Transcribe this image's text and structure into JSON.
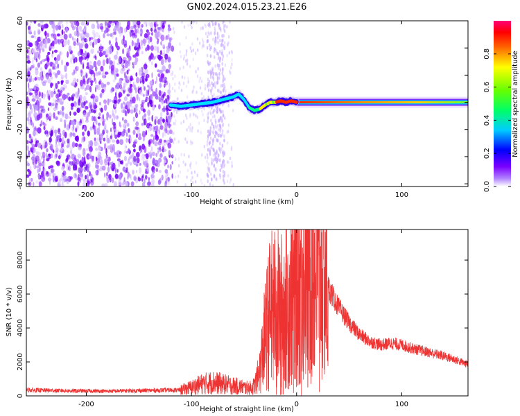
{
  "figure_title": "GN02.2024.015.23.21.E26",
  "chart_data": [
    {
      "type": "heatmap",
      "title": "",
      "xlabel": "Height of straight line (km)",
      "ylabel": "Frequency (Hz)",
      "xlim": [
        -257,
        163
      ],
      "ylim": [
        -62,
        60
      ],
      "x_ticks": [
        -200,
        -100,
        0,
        100
      ],
      "x_tick_labels": [
        "-200",
        "-100",
        "0",
        "100"
      ],
      "y_ticks": [
        -60,
        -40,
        -20,
        0,
        20,
        40,
        60
      ],
      "y_tick_labels": [
        "-60",
        "-40",
        "-20",
        "0",
        "20",
        "40",
        "60"
      ],
      "grid": false,
      "description_regions": {
        "noise_region_x": [
          -257,
          -118
        ],
        "faint_band_x": [
          -85,
          -68
        ],
        "signal_track": {
          "x": [
            -120,
            -110,
            -100,
            -90,
            -80,
            -70,
            -60,
            -55,
            -50,
            -45,
            -40,
            -35,
            -30,
            -25,
            -20,
            -15,
            -10,
            -5,
            0,
            20,
            60,
            100,
            163
          ],
          "y": [
            -2,
            -3,
            -2,
            -1,
            0,
            2,
            4,
            6,
            2,
            -4,
            -6,
            -5,
            -2,
            0,
            0,
            1,
            0,
            1,
            0,
            0,
            0,
            0,
            0
          ]
        },
        "steady_line_x": [
          0,
          163
        ],
        "steady_line_freq": 0
      },
      "colorbar": {
        "label": "Normalized spectral amplitude",
        "range": [
          0,
          1
        ],
        "ticks": [
          0.0,
          0.2,
          0.4,
          0.6,
          0.8
        ],
        "tick_labels": [
          "0.0",
          "0.2",
          "0.4",
          "0.6",
          "0.8"
        ],
        "colormap": [
          "#ffffff",
          "#7a00ff",
          "#0000ff",
          "#00ccff",
          "#00ff66",
          "#66ff00",
          "#ffff00",
          "#ff6600",
          "#ff0000",
          "#ff0077"
        ]
      }
    },
    {
      "type": "line",
      "title": "",
      "xlabel": "Height of straight line (km)",
      "ylabel": "SNR (10 * v/v)",
      "xlim": [
        -257,
        163
      ],
      "ylim": [
        0,
        9800
      ],
      "x_ticks": [
        -200,
        -100,
        0,
        100
      ],
      "x_tick_labels": [
        "-200",
        "-100",
        "0",
        "100"
      ],
      "y_ticks": [
        0,
        2000,
        4000,
        6000,
        8000
      ],
      "y_tick_labels": [
        "0",
        "2000",
        "4000",
        "6000",
        "8000"
      ],
      "grid": false,
      "series": [
        {
          "color": "#ee3333",
          "x": [
            -257,
            -220,
            -180,
            -140,
            -110,
            -100,
            -90,
            -80,
            -70,
            -60,
            -50,
            -45,
            -40,
            -35,
            -30,
            -25,
            -20,
            -15,
            -10,
            -5,
            0,
            5,
            10,
            15,
            20,
            25,
            30,
            40,
            50,
            60,
            70,
            80,
            90,
            100,
            110,
            120,
            130,
            140,
            150,
            163
          ],
          "values": [
            350,
            300,
            280,
            320,
            350,
            500,
            700,
            800,
            700,
            600,
            500,
            450,
            600,
            1500,
            3500,
            5000,
            5200,
            5000,
            5400,
            6000,
            7000,
            7400,
            7600,
            7600,
            7400,
            7000,
            6400,
            5200,
            4300,
            3600,
            3200,
            3000,
            3100,
            3000,
            2800,
            2650,
            2500,
            2350,
            2150,
            1850
          ]
        }
      ]
    }
  ]
}
